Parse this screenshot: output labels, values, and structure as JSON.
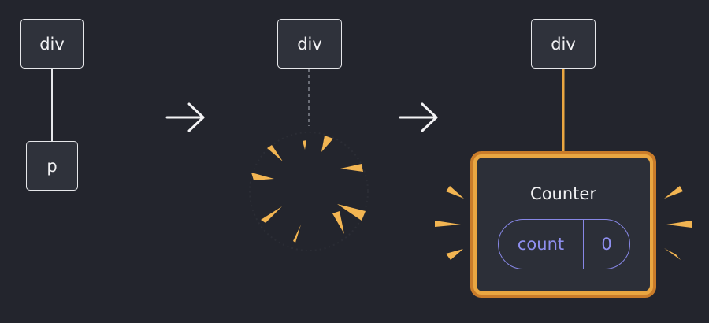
{
  "tree_before": {
    "root_label": "div",
    "child_label": "p"
  },
  "tree_removing": {
    "root_label": "div"
  },
  "tree_after": {
    "root_label": "div",
    "component": {
      "name": "Counter",
      "state": {
        "key": "count",
        "value": "0"
      }
    }
  },
  "colors": {
    "background": "#23252d",
    "node_fill": "#2f323b",
    "node_border": "#e6e7ea",
    "accent": "#e9a641",
    "accent_dark": "#c97c2a",
    "state": "#8787e6"
  },
  "icons": [
    "arrow-right-icon",
    "arrow-right-icon",
    "burst-icon",
    "sparkle-icon"
  ]
}
